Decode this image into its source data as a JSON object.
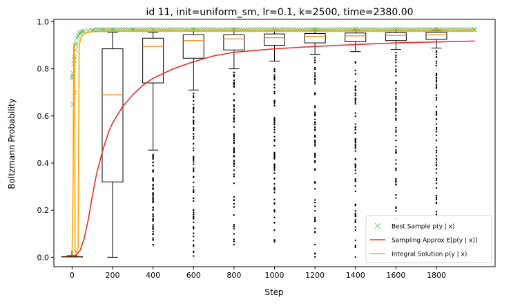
{
  "chart_data": {
    "type": "box+line+scatter",
    "title": "id 11, init=uniform_sm, lr=0.1, k=2500, time=2380.00",
    "xlabel": "Step",
    "ylabel": "Boltzmann Probability",
    "xlim": [
      -90,
      2090
    ],
    "ylim": [
      -0.04,
      1.01
    ],
    "xticks": [
      0,
      200,
      400,
      600,
      800,
      1000,
      1200,
      1400,
      1600,
      1800
    ],
    "xtick_labels": [
      "0",
      "200",
      "400",
      "600",
      "800",
      "1000",
      "1200",
      "1400",
      "1600",
      "1800"
    ],
    "yticks": [
      0.0,
      0.2,
      0.4,
      0.6,
      0.8,
      1.0
    ],
    "ytick_labels": [
      "0.0",
      "0.2",
      "0.4",
      "0.6",
      "0.8",
      "1.0"
    ],
    "legend_position": "lower-right",
    "boxes": [
      {
        "x": 0,
        "q1": 0.0,
        "median": 0.0,
        "q3": 0.003,
        "wlo": 0.0,
        "whi": 0.007,
        "fliers": [
          0.012,
          0.016,
          0.02,
          0.025
        ]
      },
      {
        "x": 200,
        "q1": 0.32,
        "median": 0.69,
        "q3": 0.885,
        "wlo": 0.0,
        "whi": 0.955,
        "fliers": []
      },
      {
        "x": 400,
        "q1": 0.74,
        "median": 0.895,
        "q3": 0.93,
        "wlo": 0.455,
        "whi": 0.955,
        "fliers_range": [
          0.0,
          0.44
        ]
      },
      {
        "x": 600,
        "q1": 0.845,
        "median": 0.92,
        "q3": 0.945,
        "wlo": 0.71,
        "whi": 0.96,
        "fliers_range": [
          0.0,
          0.7
        ]
      },
      {
        "x": 800,
        "q1": 0.88,
        "median": 0.927,
        "q3": 0.945,
        "wlo": 0.8,
        "whi": 0.962,
        "fliers_range": [
          0.0,
          0.79
        ]
      },
      {
        "x": 1000,
        "q1": 0.9,
        "median": 0.932,
        "q3": 0.948,
        "wlo": 0.833,
        "whi": 0.962,
        "fliers_range": [
          0.0,
          0.82
        ]
      },
      {
        "x": 1200,
        "q1": 0.91,
        "median": 0.938,
        "q3": 0.95,
        "wlo": 0.862,
        "whi": 0.963,
        "fliers_range": [
          0.0,
          0.85
        ]
      },
      {
        "x": 1400,
        "q1": 0.915,
        "median": 0.94,
        "q3": 0.952,
        "wlo": 0.873,
        "whi": 0.963,
        "fliers_range": [
          0.0,
          0.86
        ]
      },
      {
        "x": 1600,
        "q1": 0.92,
        "median": 0.942,
        "q3": 0.953,
        "wlo": 0.882,
        "whi": 0.963,
        "fliers_range": [
          0.0,
          0.87
        ]
      },
      {
        "x": 1800,
        "q1": 0.925,
        "median": 0.944,
        "q3": 0.955,
        "wlo": 0.888,
        "whi": 0.964,
        "fliers_range": [
          0.0,
          0.88
        ]
      }
    ],
    "series": [
      {
        "name": "Best Sample $p(y \\mid x)$",
        "label_display": "Best Sample p(y | x)",
        "kind": "scatter",
        "color": "#2ca02c",
        "x": [
          0,
          2,
          4,
          6,
          8,
          10,
          12,
          14,
          16,
          18,
          20,
          25,
          30,
          35,
          40,
          50,
          60,
          80,
          100,
          150,
          200,
          300,
          400,
          600,
          800,
          1000,
          1200,
          1400,
          1600,
          1800,
          1990
        ],
        "y": [
          0.76,
          0.77,
          0.65,
          0.78,
          0.82,
          0.84,
          0.85,
          0.7,
          0.88,
          0.9,
          0.91,
          0.93,
          0.94,
          0.95,
          0.955,
          0.958,
          0.96,
          0.962,
          0.963,
          0.964,
          0.965,
          0.966,
          0.966,
          0.967,
          0.967,
          0.967,
          0.967,
          0.967,
          0.967,
          0.967,
          0.967
        ]
      },
      {
        "name": "Sampling Approx $E[p(y \\mid x)]$",
        "label_display": "Sampling Approx E[p(y | x)]",
        "kind": "line",
        "color": "#ef2b2b",
        "x": [
          0,
          20,
          40,
          60,
          80,
          100,
          120,
          150,
          180,
          200,
          250,
          300,
          350,
          400,
          500,
          600,
          700,
          800,
          1000,
          1200,
          1400,
          1600,
          1800,
          1990
        ],
        "y": [
          0.005,
          0.01,
          0.03,
          0.08,
          0.16,
          0.26,
          0.35,
          0.45,
          0.53,
          0.57,
          0.64,
          0.69,
          0.73,
          0.76,
          0.8,
          0.83,
          0.855,
          0.87,
          0.885,
          0.895,
          0.903,
          0.91,
          0.914,
          0.918
        ]
      },
      {
        "name": "Integral Solution $p(y \\mid x)$",
        "label_display": "Integral Solution p(y | x)",
        "kind": "line",
        "color": "#ffa500",
        "x": [
          0,
          5,
          8,
          10,
          12,
          15,
          18,
          20,
          25,
          30,
          35,
          38,
          40,
          45,
          50,
          60,
          80,
          100,
          150,
          200,
          400,
          600,
          800,
          1000,
          1200,
          1400,
          1600,
          1800,
          1990
        ],
        "y": [
          0.01,
          0.3,
          0.88,
          0.91,
          0.86,
          0.03,
          0.02,
          0.02,
          0.03,
          0.04,
          0.9,
          0.91,
          0.92,
          0.93,
          0.94,
          0.95,
          0.955,
          0.958,
          0.96,
          0.96,
          0.961,
          0.961,
          0.961,
          0.961,
          0.961,
          0.961,
          0.961,
          0.961,
          0.961
        ]
      }
    ]
  }
}
